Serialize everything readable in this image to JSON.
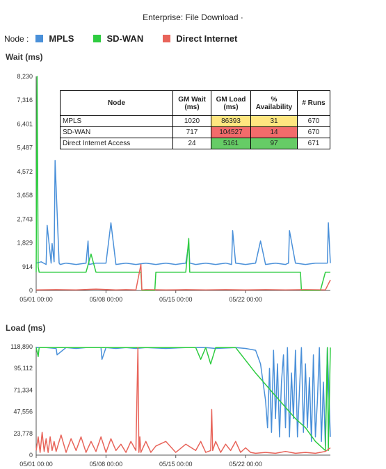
{
  "title": "Enterprise: File Download ·",
  "legend": {
    "label": "Node :",
    "items": [
      {
        "name": "MPLS",
        "color": "#4a90d9"
      },
      {
        "name": "SD-WAN",
        "color": "#2ecc40"
      },
      {
        "name": "Direct Internet",
        "color": "#e8645a"
      }
    ]
  },
  "table": {
    "headers": [
      "Node",
      "GM Wait (ms)",
      "GM Load (ms)",
      "% Availability",
      "# Runs"
    ],
    "rows": [
      {
        "node": "MPLS",
        "wait": "1020",
        "load": "86393",
        "avail": "31",
        "runs": "670"
      },
      {
        "node": "SD-WAN",
        "wait": "717",
        "load": "104527",
        "avail": "14",
        "runs": "670"
      },
      {
        "node": "Direct Internet Access",
        "wait": "24",
        "load": "5161",
        "avail": "97",
        "runs": "671"
      }
    ]
  },
  "chart_data": [
    {
      "type": "line",
      "ylabel": "Wait (ms)",
      "ylim": [
        0,
        8230
      ],
      "yticks": [
        "8,230",
        "7,316",
        "6,401",
        "5,487",
        "4,572",
        "3,658",
        "2,743",
        "1,829",
        "914",
        "0"
      ],
      "xticks": [
        "05/01 00:00",
        "05/08 00:00",
        "05/15 00:00",
        "05/22 00:00"
      ],
      "xrange_days": [
        0,
        29.5
      ],
      "grid": false,
      "series": [
        {
          "name": "MPLS",
          "color": "#4a90d9",
          "x": [
            0,
            0.5,
            1,
            1.1,
            1.5,
            1.6,
            1.8,
            1.9,
            2.3,
            2.4,
            3,
            4,
            5,
            5.2,
            5.3,
            6,
            7,
            7.5,
            8,
            9,
            10,
            11,
            12,
            13,
            14,
            15,
            15.3,
            15.4,
            16,
            17,
            18,
            19,
            19.6,
            19.7,
            20,
            21,
            22,
            22.5,
            23,
            24,
            25,
            25.3,
            25.4,
            26,
            27,
            28,
            29.2,
            29.3,
            29.5
          ],
          "values": [
            1050,
            1100,
            1000,
            2500,
            1050,
            1800,
            1100,
            5000,
            1050,
            1000,
            1050,
            1000,
            1050,
            1900,
            1000,
            1050,
            1050,
            2600,
            1000,
            1050,
            1000,
            1050,
            1000,
            1050,
            1000,
            1050,
            1800,
            1050,
            1000,
            1050,
            1000,
            1050,
            1000,
            2300,
            1050,
            1000,
            1050,
            1900,
            1000,
            1050,
            1000,
            1050,
            2300,
            1050,
            1000,
            1050,
            1050,
            2600,
            1050
          ]
        },
        {
          "name": "SD-WAN",
          "color": "#2ecc40",
          "x": [
            0,
            0.1,
            0.2,
            0.3,
            2,
            4,
            5,
            5.5,
            6,
            10,
            10.5,
            10.6,
            10.8,
            11.9,
            12,
            15,
            15.3,
            15.4,
            17,
            19,
            20,
            20.5,
            21,
            26,
            26.5,
            26.6,
            27,
            28,
            28.5,
            29,
            29.5
          ],
          "values": [
            700,
            8230,
            900,
            700,
            700,
            700,
            700,
            1400,
            700,
            700,
            700,
            0,
            0,
            0,
            700,
            700,
            2000,
            700,
            700,
            700,
            700,
            700,
            700,
            700,
            700,
            0,
            0,
            0,
            0,
            700,
            700
          ]
        },
        {
          "name": "Direct Internet",
          "color": "#e8645a",
          "x": [
            0,
            2,
            4,
            6,
            8,
            9,
            10,
            10.5,
            10.6,
            10.7,
            11,
            13,
            15,
            17,
            19,
            21,
            23,
            25,
            27,
            29,
            29.5
          ],
          "values": [
            20,
            30,
            20,
            50,
            20,
            30,
            20,
            1000,
            20,
            20,
            30,
            20,
            30,
            20,
            30,
            20,
            30,
            20,
            30,
            20,
            400
          ]
        }
      ]
    },
    {
      "type": "line",
      "ylabel": "Load (ms)",
      "ylim": [
        0,
        118890
      ],
      "yticks": [
        "118,890",
        "95,112",
        "71,334",
        "47,556",
        "23,778",
        "0"
      ],
      "xticks": [
        "05/01 00:00",
        "05/08 00:00",
        "05/15 00:00",
        "05/22 00:00"
      ],
      "xrange_days": [
        0,
        29.5
      ],
      "grid": false,
      "series": [
        {
          "name": "MPLS",
          "color": "#4a90d9",
          "x": [
            0,
            1,
            2,
            2.1,
            3,
            4,
            5,
            6.5,
            6.6,
            7,
            8,
            9,
            10,
            11,
            13,
            15,
            17,
            18,
            20,
            21,
            22,
            22.5,
            23,
            23.2,
            23.4,
            23.6,
            23.8,
            24,
            24.2,
            24.4,
            24.6,
            24.8,
            25,
            25.2,
            25.4,
            25.6,
            25.8,
            26,
            26.2,
            26.4,
            26.6,
            26.8,
            27,
            27.2,
            27.4,
            27.6,
            27.8,
            28,
            28.2,
            28.4,
            28.6,
            28.8,
            29,
            29.2,
            29.5
          ],
          "values": [
            118000,
            118000,
            117000,
            110000,
            118000,
            117000,
            118000,
            118000,
            105000,
            118000,
            117000,
            118000,
            117000,
            118000,
            117000,
            118000,
            118000,
            117000,
            118000,
            117000,
            115000,
            100000,
            60000,
            30000,
            95000,
            25000,
            115000,
            40000,
            100000,
            20000,
            80000,
            110000,
            30000,
            118000,
            20000,
            90000,
            40000,
            115000,
            20000,
            70000,
            118000,
            25000,
            100000,
            30000,
            85000,
            15000,
            110000,
            20000,
            60000,
            118000,
            15000,
            80000,
            10000,
            118000,
            20000
          ]
        },
        {
          "name": "SD-WAN",
          "color": "#2ecc40",
          "x": [
            0,
            0.2,
            0.3,
            2,
            4,
            5,
            7,
            9,
            11,
            13,
            16,
            16.5,
            17,
            17.5,
            18,
            19,
            20,
            22,
            24,
            26,
            27,
            28,
            28.5,
            29,
            29.2,
            29.3,
            29.5
          ],
          "values": [
            118000,
            108000,
            118000,
            118000,
            118000,
            118000,
            118000,
            118000,
            118000,
            118000,
            118000,
            105000,
            118000,
            100000,
            118000,
            118000,
            118000,
            90000,
            65000,
            40000,
            30000,
            15000,
            10000,
            5000,
            118000,
            5000,
            118000
          ]
        },
        {
          "name": "Direct Internet",
          "color": "#e8645a",
          "x": [
            0,
            0.2,
            0.4,
            0.6,
            0.8,
            1,
            1.2,
            1.4,
            1.6,
            1.8,
            2,
            2.5,
            3,
            3.5,
            4,
            4.5,
            5,
            5.5,
            6,
            6.5,
            7,
            7.5,
            8,
            8.5,
            9,
            9.5,
            10,
            10.2,
            10.3,
            10.4,
            10.5,
            11,
            11.5,
            12,
            13,
            14,
            15,
            16,
            16.5,
            17,
            17.5,
            17.6,
            17.7,
            18,
            18.5,
            19,
            19.5,
            20,
            20.5,
            21,
            21.5,
            22,
            23,
            24,
            25,
            26,
            27,
            28,
            29,
            29.5
          ],
          "values": [
            5000,
            20000,
            3000,
            25000,
            4000,
            18000,
            3000,
            20000,
            5000,
            15000,
            4000,
            22000,
            3000,
            18000,
            5000,
            20000,
            3000,
            15000,
            4000,
            20000,
            3000,
            18000,
            5000,
            12000,
            3000,
            15000,
            5000,
            118000,
            3000,
            20000,
            3000,
            15000,
            3000,
            10000,
            15000,
            3000,
            12000,
            5000,
            15000,
            3000,
            5000,
            50000,
            5000,
            15000,
            3000,
            12000,
            5000,
            15000,
            3000,
            8000,
            3000,
            2000,
            3000,
            2000,
            4000,
            2000,
            3000,
            2000,
            4000,
            8000
          ]
        }
      ]
    }
  ]
}
